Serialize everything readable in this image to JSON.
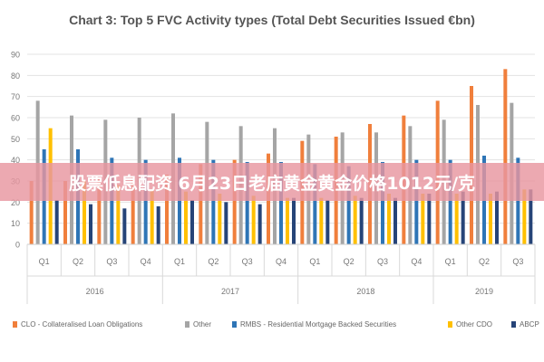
{
  "banner": "股票低息配资 6月23日老庙黄金黄金价格1012元/克",
  "chart_data": {
    "type": "bar",
    "title": "Chart 3: Top 5 FVC Activity types (Total Debt Securities Issued €bn)",
    "ylim": [
      0,
      90
    ],
    "yticks": [
      0,
      10,
      20,
      30,
      40,
      50,
      60,
      70,
      80,
      90
    ],
    "grid": "horizontal",
    "legend_position": "bottom",
    "categories": [
      "Q1",
      "Q2",
      "Q3",
      "Q4",
      "Q1",
      "Q2",
      "Q3",
      "Q4",
      "Q1",
      "Q2",
      "Q3",
      "Q4",
      "Q1",
      "Q2",
      "Q3"
    ],
    "years": [
      {
        "label": "2016",
        "count": 4
      },
      {
        "label": "2017",
        "count": 4
      },
      {
        "label": "2018",
        "count": 4
      },
      {
        "label": "2019",
        "count": 3
      }
    ],
    "series": [
      {
        "name": "CLO - Collateralised Loan Obligations",
        "color": "#f07f3c",
        "values": [
          30,
          30,
          31,
          32,
          33,
          38,
          40,
          43,
          49,
          51,
          57,
          61,
          68,
          75,
          83
        ]
      },
      {
        "name": "Other",
        "color": "#a5a5a5",
        "values": [
          68,
          61,
          59,
          60,
          62,
          58,
          56,
          55,
          52,
          53,
          53,
          56,
          59,
          66,
          67
        ]
      },
      {
        "name": "RMBS - Residential Mortgage Backed Securities",
        "color": "#2e75b6",
        "values": [
          45,
          45,
          41,
          40,
          41,
          40,
          39,
          39,
          38,
          37,
          39,
          40,
          40,
          42,
          41
        ]
      },
      {
        "name": "Other CDO",
        "color": "#ffc000",
        "values": [
          55,
          30,
          28,
          26,
          25,
          24,
          23,
          22,
          22,
          23,
          24,
          24,
          24,
          24,
          26
        ]
      },
      {
        "name": "ABCP",
        "color": "#264478",
        "values": [
          21,
          19,
          17,
          18,
          21,
          20,
          19,
          22,
          21,
          22,
          22,
          24,
          25,
          25,
          26
        ]
      }
    ]
  }
}
